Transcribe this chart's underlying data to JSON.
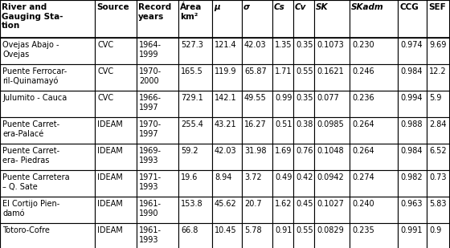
{
  "headers": [
    "River and\nGauging Sta-\ntion",
    "Source",
    "Record\nyears",
    "Área\nkm²",
    "μ",
    "σ",
    "Cs",
    "Cv",
    "SK",
    "SKadm",
    "CCG",
    "SEF"
  ],
  "rows": [
    [
      "Ovejas Abajo -\nOvejas",
      "CVC",
      "1964-\n1999",
      "527.3",
      "121.4",
      "42.03",
      "1.35",
      "0.35",
      "0.1073",
      "0.230",
      "0.974",
      "9.69"
    ],
    [
      "Puente Ferrocar-\nril-Quinamayó",
      "CVC",
      "1970-\n2000",
      "165.5",
      "119.9",
      "65.87",
      "1.71",
      "0.55",
      "0.1621",
      "0.246",
      "0.984",
      "12.2"
    ],
    [
      "Julumito - Cauca",
      "CVC",
      "1966-\n1997",
      "729.1",
      "142.1",
      "49.55",
      "0.99",
      "0.35",
      "0.077",
      "0.236",
      "0.994",
      "5.9"
    ],
    [
      "Puente Carret-\nera-Palacé",
      "IDEAM",
      "1970-\n1997",
      "255.4",
      "43.21",
      "16.27",
      "0.51",
      "0.38",
      "0.0985",
      "0.264",
      "0.988",
      "2.84"
    ],
    [
      "Puente Carret-\nera- Piedras",
      "IDEAM",
      "1969-\n1993",
      "59.2",
      "42.03",
      "31.98",
      "1.69",
      "0.76",
      "0.1048",
      "0.264",
      "0.984",
      "6.52"
    ],
    [
      "Puente Carretera\n– Q. Sate",
      "IDEAM",
      "1971-\n1993",
      "19.6",
      "8.94",
      "3.72",
      "0.49",
      "0.42",
      "0.0942",
      "0.274",
      "0.982",
      "0.73"
    ],
    [
      "El Cortijo Pien-\ndamó",
      "IDEAM",
      "1961-\n1990",
      "153.8",
      "45.62",
      "20.7",
      "1.62",
      "0.45",
      "0.1027",
      "0.240",
      "0.963",
      "5.83"
    ],
    [
      "Totoro-Cofre",
      "IDEAM",
      "1961-\n1993",
      "66.8",
      "10.45",
      "5.78",
      "0.91",
      "0.55",
      "0.0829",
      "0.235",
      "0.991",
      "0.9"
    ]
  ],
  "italic_header_cols": [
    4,
    5,
    6,
    7,
    8,
    9
  ],
  "bg_color": "#ffffff",
  "border_color": "#000000",
  "text_color": "#000000",
  "fontsize": 7.0,
  "header_fontsize": 7.5,
  "fig_width": 5.6,
  "fig_height": 3.09,
  "dpi": 100
}
